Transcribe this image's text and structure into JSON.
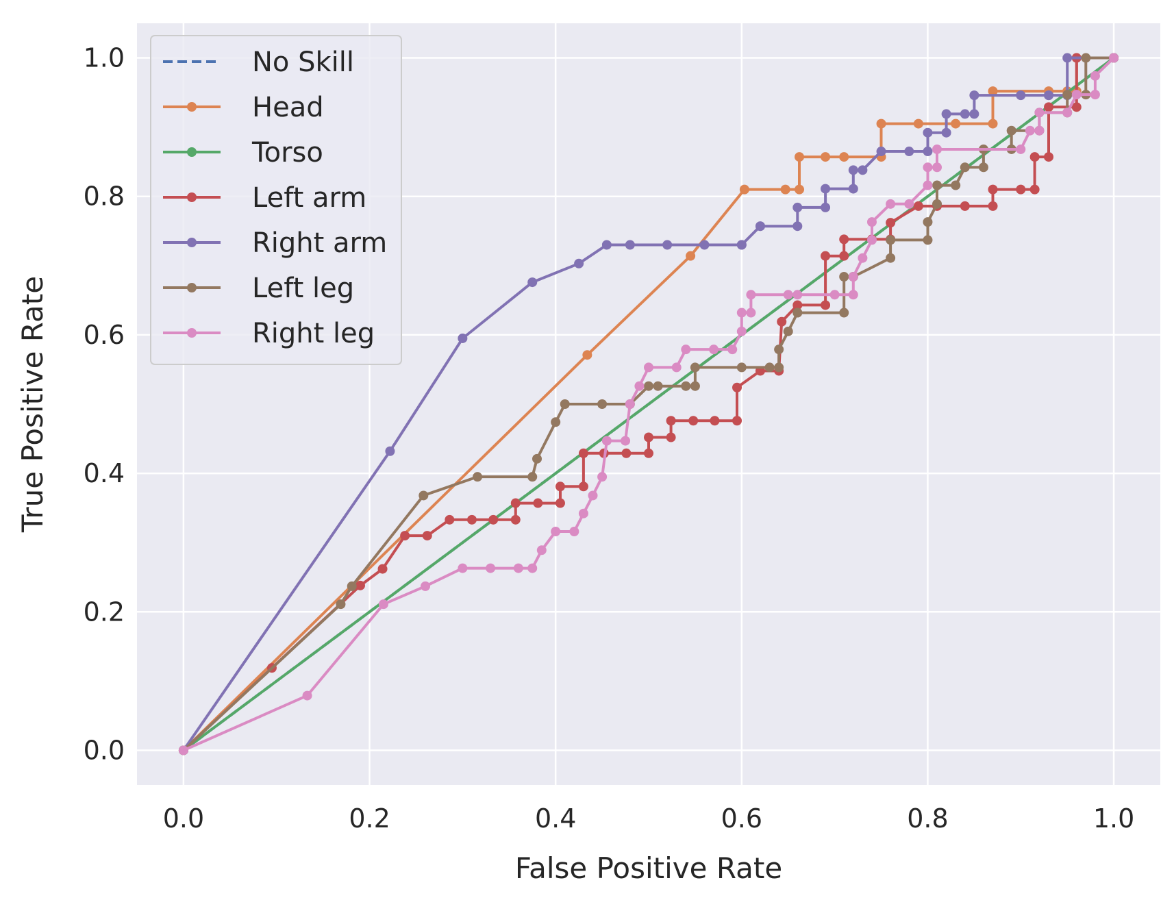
{
  "chart_data": {
    "type": "line",
    "title": "",
    "xlabel": "False Positive Rate",
    "ylabel": "True Positive Rate",
    "xlim": [
      -0.05,
      1.05
    ],
    "ylim": [
      -0.05,
      1.05
    ],
    "x_ticks": [
      "0.0",
      "0.2",
      "0.4",
      "0.6",
      "0.8",
      "1.0"
    ],
    "y_ticks": [
      "0.0",
      "0.2",
      "0.4",
      "0.6",
      "0.8",
      "1.0"
    ],
    "grid": true,
    "legend_position": "top-left",
    "background_color": "#EAEAF2",
    "series": [
      {
        "name": "No Skill",
        "color": "#4C72B0",
        "style": "dashed",
        "markers": false,
        "x": [
          0,
          1
        ],
        "y": [
          0,
          1
        ]
      },
      {
        "name": "Head",
        "color": "#DD8452",
        "style": "solid",
        "markers": true,
        "x": [
          0,
          0.434,
          0.545,
          0.603,
          0.647,
          0.662,
          0.662,
          0.69,
          0.71,
          0.75,
          0.75,
          0.79,
          0.83,
          0.87,
          0.87,
          0.93,
          0.95,
          0.96,
          0.96,
          1.0
        ],
        "y": [
          0,
          0.571,
          0.714,
          0.81,
          0.81,
          0.81,
          0.857,
          0.857,
          0.857,
          0.857,
          0.905,
          0.905,
          0.905,
          0.905,
          0.952,
          0.952,
          0.952,
          0.952,
          1.0,
          1.0
        ]
      },
      {
        "name": "Torso",
        "color": "#55A868",
        "style": "solid",
        "markers": true,
        "x": [
          0,
          1
        ],
        "y": [
          0,
          1
        ]
      },
      {
        "name": "Left arm",
        "color": "#C44E52",
        "style": "solid",
        "markers": true,
        "x": [
          0,
          0.095,
          0.19,
          0.214,
          0.238,
          0.262,
          0.286,
          0.31,
          0.333,
          0.357,
          0.357,
          0.381,
          0.405,
          0.405,
          0.43,
          0.43,
          0.452,
          0.476,
          0.5,
          0.5,
          0.524,
          0.524,
          0.548,
          0.571,
          0.595,
          0.595,
          0.62,
          0.64,
          0.643,
          0.66,
          0.69,
          0.69,
          0.71,
          0.71,
          0.74,
          0.76,
          0.76,
          0.79,
          0.81,
          0.84,
          0.87,
          0.87,
          0.9,
          0.915,
          0.915,
          0.93,
          0.93,
          0.96,
          0.96,
          1.0
        ],
        "y": [
          0,
          0.119,
          0.238,
          0.262,
          0.31,
          0.31,
          0.333,
          0.333,
          0.333,
          0.333,
          0.357,
          0.357,
          0.357,
          0.381,
          0.381,
          0.429,
          0.429,
          0.429,
          0.429,
          0.452,
          0.452,
          0.476,
          0.476,
          0.476,
          0.476,
          0.524,
          0.548,
          0.548,
          0.619,
          0.643,
          0.643,
          0.714,
          0.714,
          0.738,
          0.738,
          0.738,
          0.762,
          0.786,
          0.786,
          0.786,
          0.786,
          0.81,
          0.81,
          0.81,
          0.857,
          0.857,
          0.929,
          0.929,
          1.0,
          1.0
        ]
      },
      {
        "name": "Right arm",
        "color": "#8172B3",
        "style": "solid",
        "markers": true,
        "x": [
          0,
          0.222,
          0.3,
          0.375,
          0.425,
          0.455,
          0.48,
          0.52,
          0.56,
          0.6,
          0.6,
          0.62,
          0.62,
          0.66,
          0.66,
          0.69,
          0.69,
          0.72,
          0.72,
          0.73,
          0.75,
          0.78,
          0.8,
          0.8,
          0.82,
          0.82,
          0.84,
          0.85,
          0.85,
          0.9,
          0.93,
          0.93,
          0.95,
          0.95,
          1.0
        ],
        "y": [
          0,
          0.432,
          0.595,
          0.676,
          0.703,
          0.73,
          0.73,
          0.73,
          0.73,
          0.73,
          0.73,
          0.757,
          0.757,
          0.757,
          0.784,
          0.784,
          0.811,
          0.811,
          0.838,
          0.838,
          0.865,
          0.865,
          0.865,
          0.892,
          0.892,
          0.919,
          0.919,
          0.919,
          0.946,
          0.946,
          0.946,
          0.946,
          0.946,
          1.0,
          1.0
        ]
      },
      {
        "name": "Left leg",
        "color": "#937860",
        "style": "solid",
        "markers": true,
        "x": [
          0,
          0.169,
          0.181,
          0.258,
          0.316,
          0.375,
          0.38,
          0.4,
          0.41,
          0.45,
          0.48,
          0.5,
          0.51,
          0.54,
          0.55,
          0.55,
          0.6,
          0.63,
          0.64,
          0.64,
          0.65,
          0.66,
          0.66,
          0.71,
          0.71,
          0.72,
          0.72,
          0.76,
          0.76,
          0.8,
          0.8,
          0.81,
          0.81,
          0.83,
          0.84,
          0.86,
          0.86,
          0.89,
          0.89,
          0.92,
          0.92,
          0.95,
          0.95,
          0.97,
          0.97,
          1.0
        ],
        "y": [
          0,
          0.211,
          0.237,
          0.368,
          0.395,
          0.395,
          0.421,
          0.474,
          0.5,
          0.5,
          0.5,
          0.526,
          0.526,
          0.526,
          0.526,
          0.553,
          0.553,
          0.553,
          0.553,
          0.579,
          0.605,
          0.632,
          0.632,
          0.632,
          0.684,
          0.684,
          0.684,
          0.711,
          0.737,
          0.737,
          0.763,
          0.789,
          0.816,
          0.816,
          0.842,
          0.842,
          0.868,
          0.868,
          0.895,
          0.895,
          0.921,
          0.921,
          0.947,
          0.947,
          1.0,
          1.0
        ]
      },
      {
        "name": "Right leg",
        "color": "#DA8BC3",
        "style": "solid",
        "markers": true,
        "x": [
          0,
          0.133,
          0.215,
          0.26,
          0.3,
          0.33,
          0.36,
          0.375,
          0.385,
          0.4,
          0.42,
          0.43,
          0.44,
          0.45,
          0.455,
          0.475,
          0.48,
          0.49,
          0.5,
          0.53,
          0.54,
          0.57,
          0.59,
          0.6,
          0.6,
          0.61,
          0.61,
          0.65,
          0.66,
          0.7,
          0.72,
          0.72,
          0.73,
          0.74,
          0.74,
          0.76,
          0.78,
          0.8,
          0.8,
          0.81,
          0.81,
          0.9,
          0.91,
          0.92,
          0.92,
          0.95,
          0.96,
          0.98,
          0.98,
          1.0
        ],
        "y": [
          0,
          0.079,
          0.211,
          0.237,
          0.263,
          0.263,
          0.263,
          0.263,
          0.289,
          0.316,
          0.316,
          0.342,
          0.368,
          0.395,
          0.447,
          0.447,
          0.5,
          0.526,
          0.553,
          0.553,
          0.579,
          0.579,
          0.579,
          0.605,
          0.632,
          0.632,
          0.658,
          0.658,
          0.658,
          0.658,
          0.658,
          0.684,
          0.711,
          0.737,
          0.763,
          0.789,
          0.789,
          0.816,
          0.842,
          0.842,
          0.868,
          0.868,
          0.895,
          0.895,
          0.921,
          0.921,
          0.947,
          0.947,
          0.974,
          1.0
        ]
      }
    ]
  }
}
